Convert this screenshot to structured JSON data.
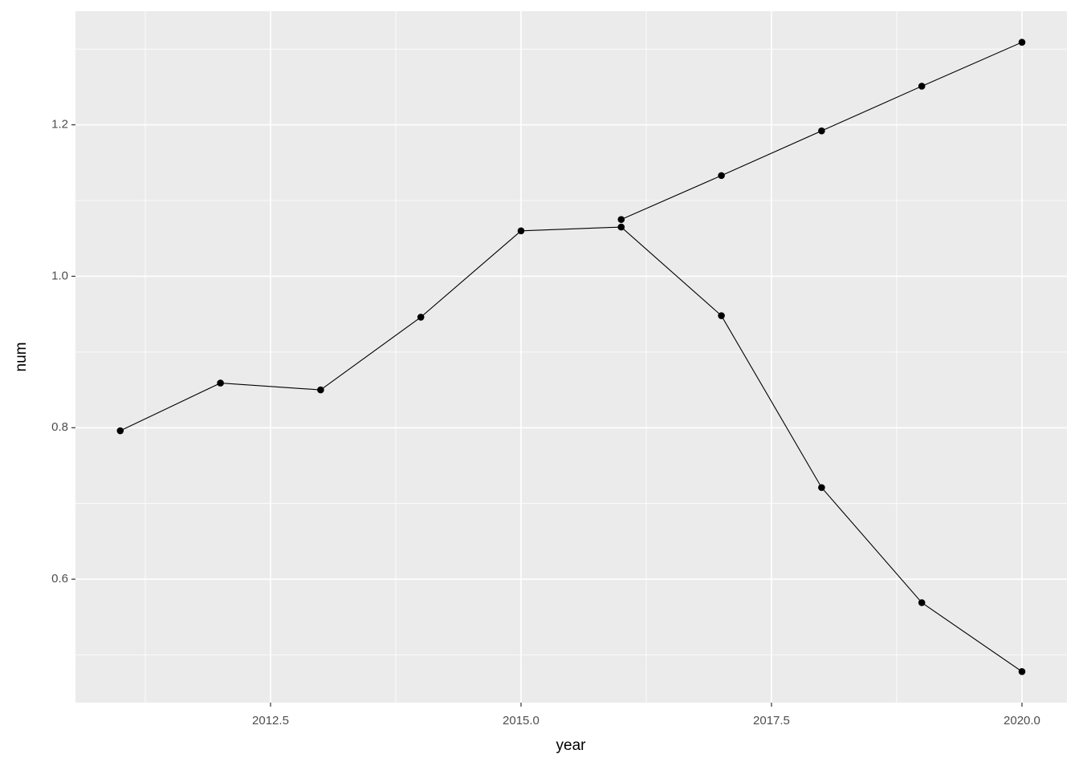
{
  "chart_data": {
    "type": "line",
    "x_label": "year",
    "y_label": "num",
    "x": [
      2011,
      2012,
      2013,
      2014,
      2015,
      2016,
      2017,
      2018,
      2019,
      2020
    ],
    "series": [
      {
        "color": "#000000",
        "values": [
          0.796,
          0.859,
          0.85,
          0.946,
          1.06,
          1.065,
          0.948,
          0.721,
          0.569,
          0.478
        ]
      },
      {
        "color": "#000000",
        "values": [
          null,
          null,
          null,
          null,
          null,
          1.075,
          1.133,
          1.192,
          1.251,
          1.309
        ]
      }
    ],
    "xlim": [
      2010.553,
      2020.449
    ],
    "ylim": [
      0.437,
      1.35
    ],
    "xticks": [
      2012.5,
      {
        "value": 2015,
        "label": "2015.0"
      },
      2017.5,
      {
        "value": 2020,
        "label": "2020.0"
      }
    ],
    "yticks": [
      0.6,
      0.8,
      {
        "value": 1,
        "label": "1.0"
      },
      1.2
    ],
    "xminor": [
      2011.25,
      2013.75,
      2016.25,
      2018.75
    ],
    "yminor": [
      0.5,
      0.7,
      0.9,
      1.1,
      1.3
    ],
    "grid": true
  }
}
